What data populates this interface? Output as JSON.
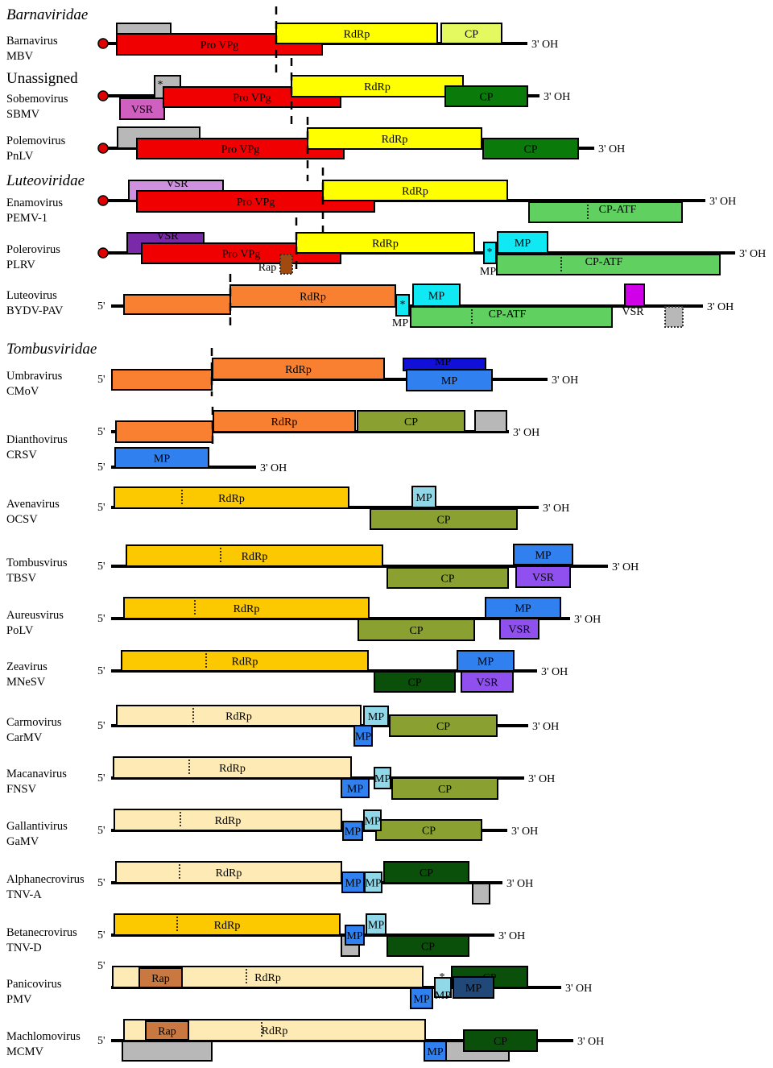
{
  "colors": {
    "red": "#f00000",
    "yellow": "#ffff00",
    "gray": "#b8b8b8",
    "cp_lime": "#e4f860",
    "pink": "#d060c0",
    "green": "#0a7a0a",
    "lavender": "#d090e0",
    "purple": "#7a2aa8",
    "cp_atf": "#60d060",
    "cyan": "#10e8f4",
    "brown": "#a04a10",
    "orange": "#f88030",
    "magenta": "#d000e8",
    "darkblue": "#1010d8",
    "blue": "#3080f0",
    "olive": "#8aa030",
    "amber": "#fcc800",
    "lightcyan": "#90d8e8",
    "violet": "#9050f0",
    "darkgreen": "#0a500a",
    "pale": "#fdeab4",
    "rap": "#c87840",
    "navy": "#204878"
  },
  "families": [
    "Barnaviridae",
    "Unassigned",
    "Luteoviridae",
    "Tombusviridae"
  ],
  "viruses": [
    {
      "genus": "Barnavirus",
      "species": "MBV",
      "three_prime": "3' OH",
      "orfs": [
        {
          "label": "",
          "color": "gray"
        },
        {
          "label": "Pro  VPg",
          "color": "red"
        },
        {
          "label": "RdRp",
          "color": "yellow"
        },
        {
          "label": "CP",
          "color": "cp_lime"
        }
      ],
      "notes": []
    },
    {
      "genus": "Sobemovirus",
      "species": "SBMV",
      "three_prime": "3' OH",
      "orfs": [
        {
          "label": "*",
          "color": "gray"
        },
        {
          "label": "VSR",
          "color": "pink"
        },
        {
          "label": "Pro  VPg",
          "color": "red"
        },
        {
          "label": "RdRp",
          "color": "yellow"
        },
        {
          "label": "CP",
          "color": "green"
        }
      ],
      "notes": []
    },
    {
      "genus": "Polemovirus",
      "species": "PnLV",
      "three_prime": "3' OH",
      "orfs": [
        {
          "label": "",
          "color": "gray"
        },
        {
          "label": "Pro  VPg",
          "color": "red"
        },
        {
          "label": "RdRp",
          "color": "yellow"
        },
        {
          "label": "CP",
          "color": "green"
        }
      ],
      "notes": []
    },
    {
      "genus": "Enamovirus",
      "species": "PEMV-1",
      "three_prime": "3' OH",
      "orfs": [
        {
          "label": "VSR",
          "color": "lavender"
        },
        {
          "label": "Pro  VPg",
          "color": "red"
        },
        {
          "label": "RdRp",
          "color": "yellow"
        },
        {
          "label": "CP-ATF",
          "color": "cp_atf"
        }
      ],
      "notes": []
    },
    {
      "genus": "Polerovirus",
      "species": "PLRV",
      "three_prime": "3' OH",
      "orfs": [
        {
          "label": "VSR",
          "color": "purple"
        },
        {
          "label": "Pro  VPg",
          "color": "red"
        },
        {
          "label": "RdRp",
          "color": "yellow"
        },
        {
          "label": "Rap",
          "color": "brown"
        },
        {
          "label": "*",
          "color": "cyan"
        },
        {
          "label": "MP",
          "color": "cyan"
        },
        {
          "label": "CP-ATF",
          "color": "cp_atf"
        }
      ],
      "notes": [
        "MP"
      ]
    },
    {
      "genus": "Luteovirus",
      "species": "BYDV-PAV",
      "five_prime": "5'",
      "three_prime": "3' OH",
      "orfs": [
        {
          "label": "",
          "color": "orange"
        },
        {
          "label": "RdRp",
          "color": "orange"
        },
        {
          "label": "*",
          "color": "cyan"
        },
        {
          "label": "MP",
          "color": "cyan"
        },
        {
          "label": "CP-ATF",
          "color": "cp_atf"
        },
        {
          "label": "VSR",
          "color": "magenta"
        },
        {
          "label": "",
          "color": "gray"
        }
      ],
      "notes": [
        "MP"
      ]
    },
    {
      "genus": "Umbravirus",
      "species": "CMoV",
      "five_prime": "5'",
      "three_prime": "3' OH",
      "orfs": [
        {
          "label": "",
          "color": "orange"
        },
        {
          "label": "RdRp",
          "color": "orange"
        },
        {
          "label": "MP",
          "color": "darkblue"
        },
        {
          "label": "MP",
          "color": "blue"
        }
      ],
      "notes": []
    },
    {
      "genus": "Dianthovirus",
      "species": "CRSV",
      "five_prime": "5'",
      "three_prime": "3' OH",
      "orfs": [
        {
          "label": "",
          "color": "orange"
        },
        {
          "label": "RdRp",
          "color": "orange"
        },
        {
          "label": "CP",
          "color": "olive"
        },
        {
          "label": "",
          "color": "gray"
        },
        {
          "label": "MP",
          "color": "blue"
        }
      ],
      "notes": []
    },
    {
      "genus": "Avenavirus",
      "species": "OCSV",
      "five_prime": "5'",
      "three_prime": "3' OH",
      "orfs": [
        {
          "label": "RdRp",
          "color": "amber"
        },
        {
          "label": "MP",
          "color": "lightcyan"
        },
        {
          "label": "CP",
          "color": "olive"
        }
      ],
      "notes": []
    },
    {
      "genus": "Tombusvirus",
      "species": "TBSV",
      "five_prime": "5'",
      "three_prime": "3' OH",
      "orfs": [
        {
          "label": "RdRp",
          "color": "amber"
        },
        {
          "label": "CP",
          "color": "olive"
        },
        {
          "label": "MP",
          "color": "blue"
        },
        {
          "label": "VSR",
          "color": "violet"
        }
      ],
      "notes": []
    },
    {
      "genus": "Aureusvirus",
      "species": "PoLV",
      "five_prime": "5'",
      "three_prime": "3' OH",
      "orfs": [
        {
          "label": "RdRp",
          "color": "amber"
        },
        {
          "label": "CP",
          "color": "olive"
        },
        {
          "label": "MP",
          "color": "blue"
        },
        {
          "label": "VSR",
          "color": "violet"
        }
      ],
      "notes": []
    },
    {
      "genus": "Zeavirus",
      "species": "MNeSV",
      "five_prime": "5'",
      "three_prime": "3' OH",
      "orfs": [
        {
          "label": "RdRp",
          "color": "amber"
        },
        {
          "label": "CP",
          "color": "darkgreen"
        },
        {
          "label": "MP",
          "color": "blue"
        },
        {
          "label": "VSR",
          "color": "violet"
        }
      ],
      "notes": []
    },
    {
      "genus": "Carmovirus",
      "species": "CarMV",
      "five_prime": "5'",
      "three_prime": "3' OH",
      "orfs": [
        {
          "label": "RdRp",
          "color": "pale"
        },
        {
          "label": "MP",
          "color": "lightcyan"
        },
        {
          "label": "MP",
          "color": "blue"
        },
        {
          "label": "CP",
          "color": "olive"
        }
      ],
      "notes": []
    },
    {
      "genus": "Macanavirus",
      "species": "FNSV",
      "five_prime": "5'",
      "three_prime": "3' OH",
      "orfs": [
        {
          "label": "RdRp",
          "color": "pale"
        },
        {
          "label": "MP",
          "color": "blue"
        },
        {
          "label": "MP",
          "color": "lightcyan"
        },
        {
          "label": "CP",
          "color": "olive"
        }
      ],
      "notes": []
    },
    {
      "genus": "Gallantivirus",
      "species": "GaMV",
      "five_prime": "5'",
      "three_prime": "3' OH",
      "orfs": [
        {
          "label": "RdRp",
          "color": "pale"
        },
        {
          "label": "CP",
          "color": "olive"
        },
        {
          "label": "MP",
          "color": "lightcyan"
        },
        {
          "label": "MP",
          "color": "blue"
        }
      ],
      "notes": []
    },
    {
      "genus": "Alphanecrovirus",
      "species": "TNV-A",
      "five_prime": "5'",
      "three_prime": "3' OH",
      "orfs": [
        {
          "label": "RdRp",
          "color": "pale"
        },
        {
          "label": "MP",
          "color": "blue"
        },
        {
          "label": "MP",
          "color": "lightcyan"
        },
        {
          "label": "CP",
          "color": "darkgreen"
        },
        {
          "label": "",
          "color": "gray"
        }
      ],
      "notes": []
    },
    {
      "genus": "Betanecrovirus",
      "species": "TNV-D",
      "five_prime": "5'",
      "three_prime": "3' OH",
      "orfs": [
        {
          "label": "RdRp",
          "color": "amber"
        },
        {
          "label": "",
          "color": "gray"
        },
        {
          "label": "MP",
          "color": "blue"
        },
        {
          "label": "MP",
          "color": "lightcyan"
        },
        {
          "label": "CP",
          "color": "darkgreen"
        }
      ],
      "notes": []
    },
    {
      "genus": "Panicovirus",
      "species": "PMV",
      "five_prime": "5'",
      "three_prime": "3' OH",
      "orfs": [
        {
          "label": "RdRp",
          "color": "pale"
        },
        {
          "label": "Rap",
          "color": "rap"
        },
        {
          "label": "MP",
          "color": "blue"
        },
        {
          "label": "CP",
          "color": "darkgreen"
        },
        {
          "label": "MP",
          "color": "navy"
        },
        {
          "label": "MP",
          "color": "lightcyan"
        }
      ],
      "notes": [
        "*"
      ]
    },
    {
      "genus": "Machlomovirus",
      "species": "MCMV",
      "five_prime": "5'",
      "three_prime": "3' OH",
      "orfs": [
        {
          "label": "RdRp",
          "color": "pale"
        },
        {
          "label": "Rap",
          "color": "rap"
        },
        {
          "label": "",
          "color": "gray"
        },
        {
          "label": "",
          "color": "gray"
        },
        {
          "label": "MP",
          "color": "blue"
        },
        {
          "label": "CP",
          "color": "darkgreen"
        }
      ],
      "notes": []
    }
  ]
}
